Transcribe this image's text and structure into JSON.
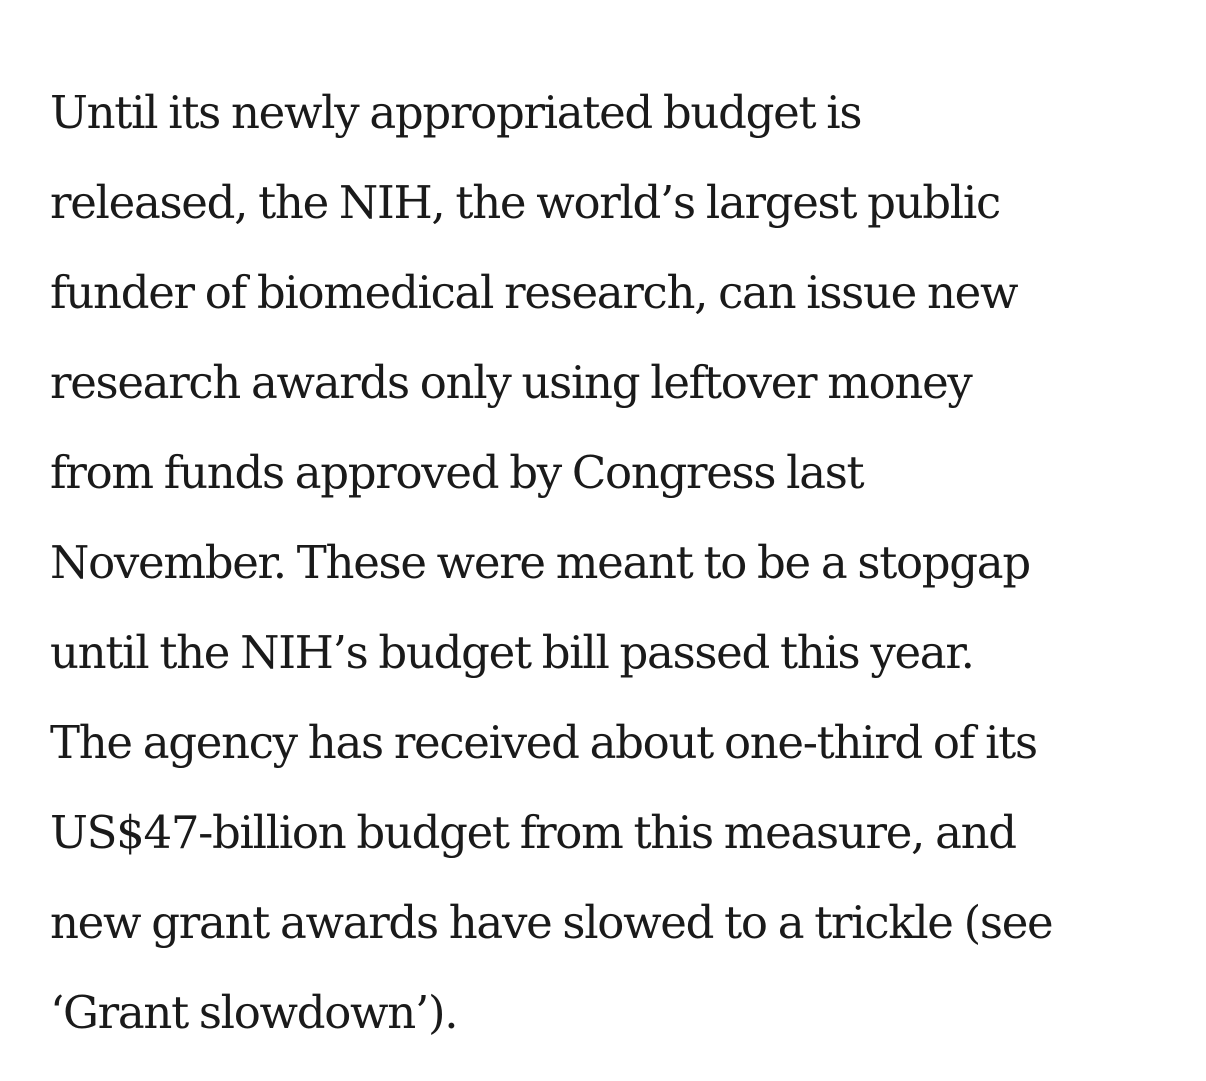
{
  "article": {
    "paragraph_lines": [
      "Until its newly appropriated budget is",
      "released, the NIH, the world’s largest public",
      "funder of biomedical research, can issue new",
      "research awards only using leftover money",
      "from funds approved by Congress last",
      "November. These were meant to be a stopgap",
      "until the NIH’s budget bill passed this year.",
      "The agency has received about one-third of its",
      "US$47-billion budget from this measure, and",
      "new grant awards have slowed to a trickle (see",
      "‘Grant slowdown’)."
    ]
  }
}
